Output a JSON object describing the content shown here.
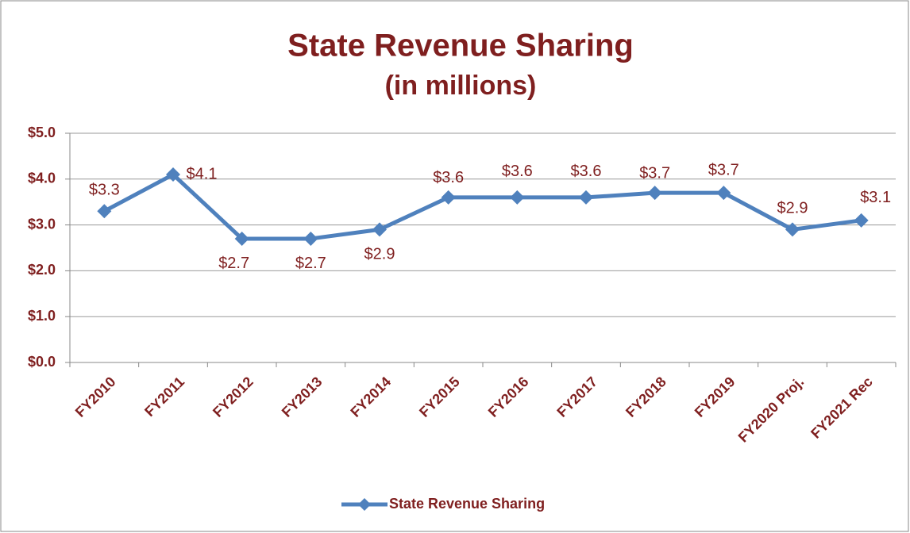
{
  "chart_data": {
    "type": "line",
    "title": "State Revenue Sharing",
    "subtitle": "(in millions)",
    "categories": [
      "FY2010",
      "FY2011",
      "FY2012",
      "FY2013",
      "FY2014",
      "FY2015",
      "FY2016",
      "FY2017",
      "FY2018",
      "FY2019",
      "FY2020 Proj.",
      "FY2021 Rec"
    ],
    "series": [
      {
        "name": "State Revenue Sharing",
        "color": "#4f81bd",
        "values": [
          3.3,
          4.1,
          2.7,
          2.7,
          2.9,
          3.6,
          3.6,
          3.6,
          3.7,
          3.7,
          2.9,
          3.1
        ],
        "value_labels": [
          "$3.3",
          "$4.1",
          "$2.7",
          "$2.7",
          "$2.9",
          "$3.6",
          "$3.6",
          "$3.6",
          "$3.7",
          "$3.7",
          "$2.9",
          "$3.1"
        ]
      }
    ],
    "ylim": [
      0,
      5
    ],
    "yticks": [
      {
        "value": 0,
        "label": "$0.0"
      },
      {
        "value": 1,
        "label": "$1.0"
      },
      {
        "value": 2,
        "label": "$2.0"
      },
      {
        "value": 3,
        "label": "$3.0"
      },
      {
        "value": 4,
        "label": "$4.0"
      },
      {
        "value": 5,
        "label": "$5.0"
      }
    ],
    "grid": true,
    "legend": "bottom"
  }
}
